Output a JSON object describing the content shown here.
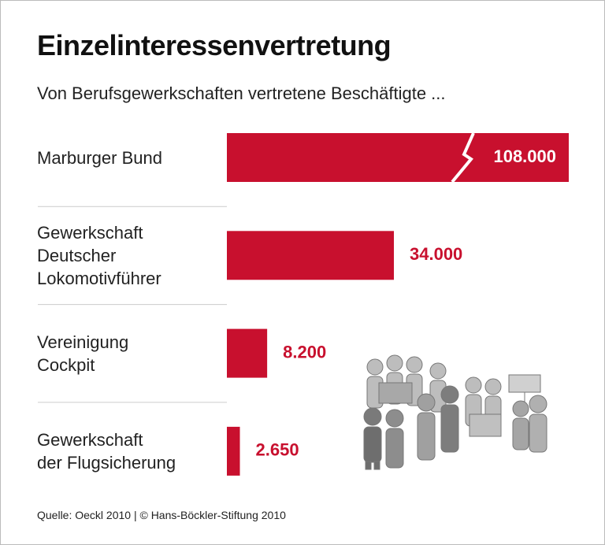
{
  "chart_data": {
    "type": "bar",
    "orientation": "horizontal",
    "title": "Einzelinteressenvertretung",
    "subtitle": "Von Berufsgewerkschaften vertretene Beschäftigte ...",
    "categories": [
      "Marburger Bund",
      "Gewerkschaft\nDeutscher\nLokomotivführer",
      "Vereinigung\nCockpit",
      "Gewerkschaft\nder Flugsicherung"
    ],
    "values": [
      108000,
      34000,
      8200,
      2650
    ],
    "value_labels": [
      "108.000",
      "34.000",
      "8.200",
      "2.650"
    ],
    "color": "#c8102e",
    "axis_break": true,
    "source": "Quelle: Oeckl 2010 | © Hans-Böckler-Stiftung 2010"
  }
}
